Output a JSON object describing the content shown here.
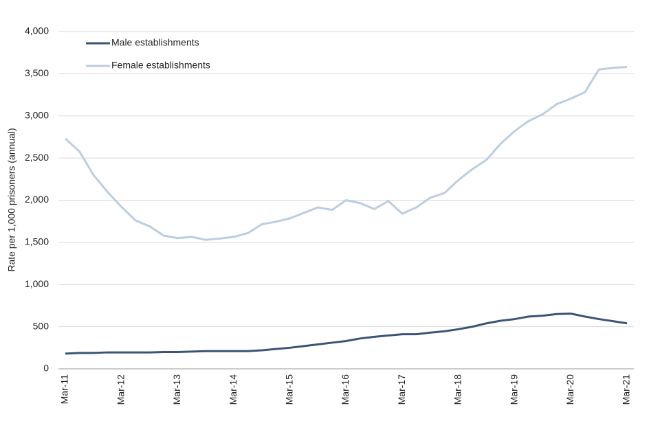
{
  "chart_data": {
    "type": "line",
    "y_label": "Rate per 1,000 prisoners (annual)",
    "categories": [
      "Mar-11",
      null,
      null,
      null,
      "Mar-12",
      null,
      null,
      null,
      "Mar-13",
      null,
      null,
      null,
      "Mar-14",
      null,
      null,
      null,
      "Mar-15",
      null,
      null,
      null,
      "Mar-16",
      null,
      null,
      null,
      "Mar-17",
      null,
      null,
      null,
      "Mar-18",
      null,
      null,
      null,
      "Mar-19",
      null,
      null,
      null,
      "Mar-20",
      null,
      null,
      null,
      "Mar-21"
    ],
    "series": [
      {
        "name": "Male establishments",
        "color": "#3a5478",
        "values": [
          180,
          188,
          188,
          195,
          195,
          195,
          195,
          200,
          200,
          205,
          210,
          210,
          210,
          210,
          220,
          235,
          250,
          270,
          290,
          310,
          330,
          360,
          380,
          395,
          410,
          410,
          430,
          445,
          470,
          500,
          540,
          570,
          590,
          620,
          630,
          650,
          655,
          620,
          590,
          565,
          540
        ]
      },
      {
        "name": "Female establishments",
        "color": "#bccde2",
        "values": [
          2730,
          2580,
          2300,
          2100,
          1920,
          1760,
          1690,
          1580,
          1550,
          1565,
          1530,
          1545,
          1565,
          1610,
          1715,
          1745,
          1785,
          1850,
          1915,
          1885,
          2000,
          1965,
          1895,
          1990,
          1840,
          1915,
          2030,
          2085,
          2240,
          2370,
          2480,
          2670,
          2820,
          2940,
          3020,
          3140,
          3205,
          3280,
          3550,
          3570,
          3580
        ]
      }
    ],
    "ylim": [
      0,
      4000
    ],
    "yticks": [
      0,
      500,
      {
        "value": 1000,
        "label": "1,000"
      },
      {
        "value": 1500,
        "label": "1,500"
      },
      {
        "value": 2000,
        "label": "2,000"
      },
      {
        "value": 2500,
        "label": "2,500"
      },
      {
        "value": 3000,
        "label": "3,000"
      },
      {
        "value": 3500,
        "label": "3,500"
      },
      {
        "value": 4000,
        "label": "4,000"
      }
    ],
    "grid": true,
    "legend": "upper left"
  }
}
